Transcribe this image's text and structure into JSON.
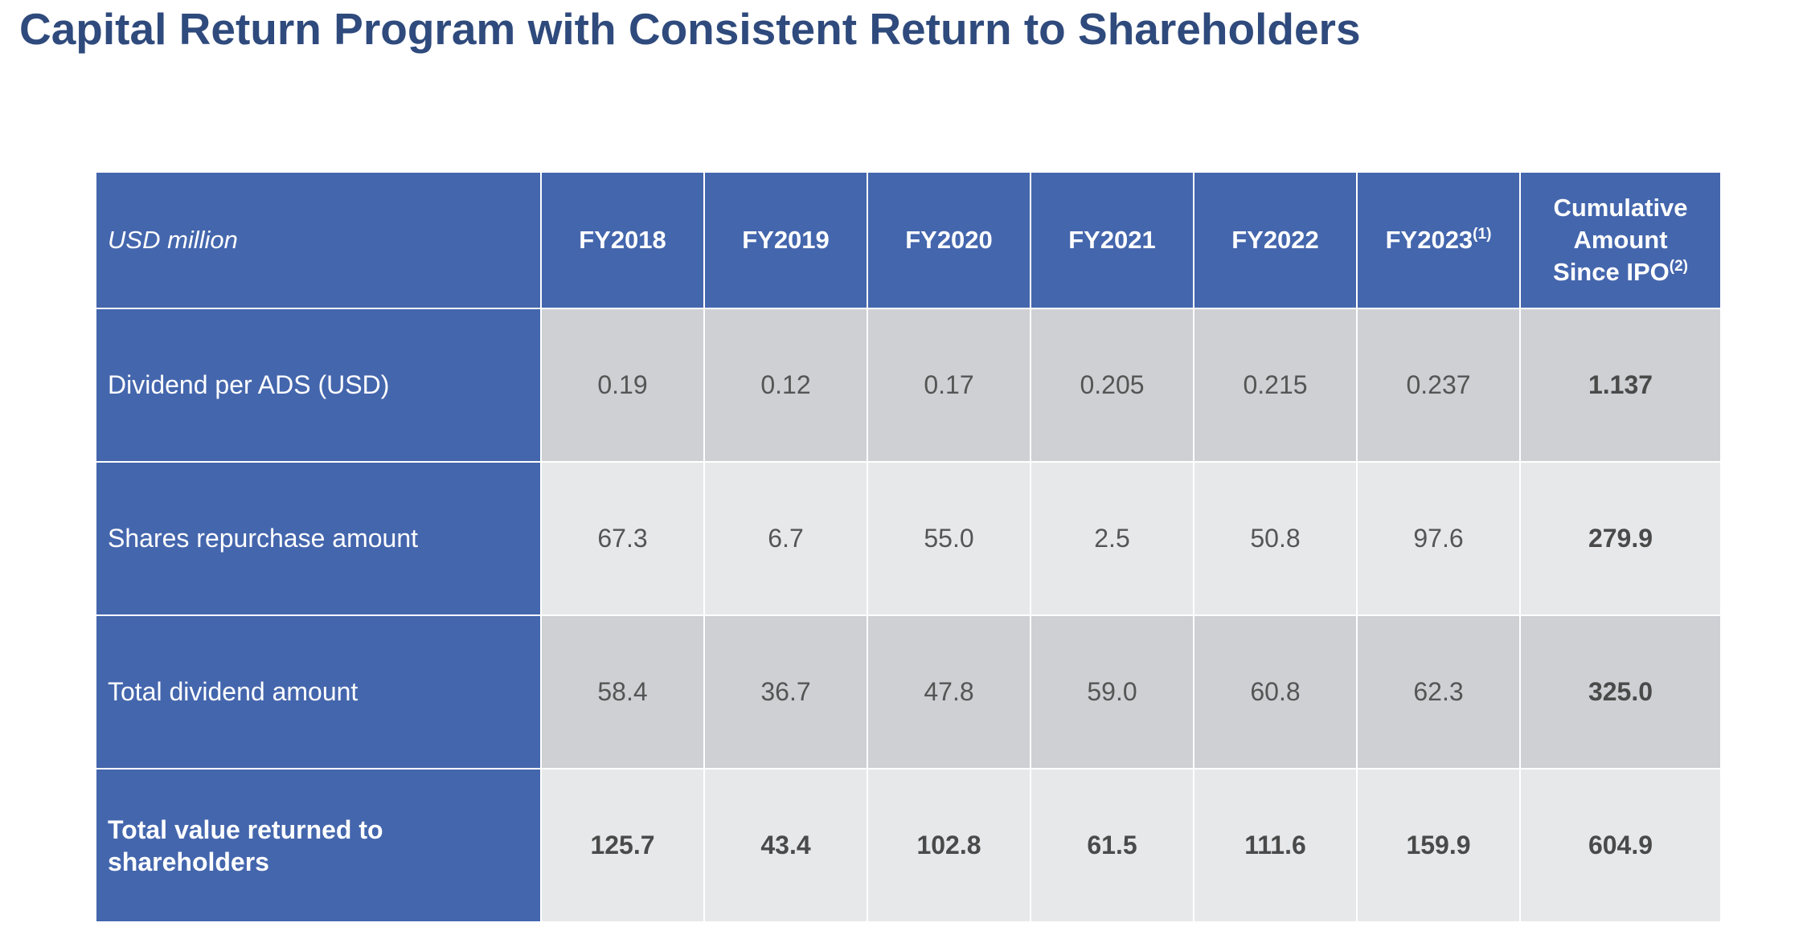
{
  "title": "Capital Return Program with Consistent Return to Shareholders",
  "table": {
    "corner_label": "USD million",
    "columns": [
      {
        "label": "FY2018",
        "note": ""
      },
      {
        "label": "FY2019",
        "note": ""
      },
      {
        "label": "FY2020",
        "note": ""
      },
      {
        "label": "FY2021",
        "note": ""
      },
      {
        "label": "FY2022",
        "note": ""
      },
      {
        "label": "FY2023",
        "note": "(1)"
      },
      {
        "label_line1": "Cumulative",
        "label_line2": "Amount",
        "label_line3": "Since IPO",
        "note": "(2)"
      }
    ],
    "rows": [
      {
        "label": "Dividend per ADS (USD)",
        "values": [
          "0.19",
          "0.12",
          "0.17",
          "0.205",
          "0.215",
          "0.237"
        ],
        "cumulative": "1.137"
      },
      {
        "label": "Shares repurchase amount",
        "values": [
          "67.3",
          "6.7",
          "55.0",
          "2.5",
          "50.8",
          "97.6"
        ],
        "cumulative": "279.9"
      },
      {
        "label": "Total dividend amount",
        "values": [
          "58.4",
          "36.7",
          "47.8",
          "59.0",
          "60.8",
          "62.3"
        ],
        "cumulative": "325.0"
      },
      {
        "label_line1": "Total value returned to",
        "label_line2": "shareholders",
        "values": [
          "125.7",
          "43.4",
          "102.8",
          "61.5",
          "111.6",
          "159.9"
        ],
        "cumulative": "604.9"
      }
    ]
  },
  "colors": {
    "title": "#2f4a7c",
    "header_fill": "#4466ad",
    "row_dark": "#cfd0d4",
    "row_light": "#e7e8ea"
  }
}
